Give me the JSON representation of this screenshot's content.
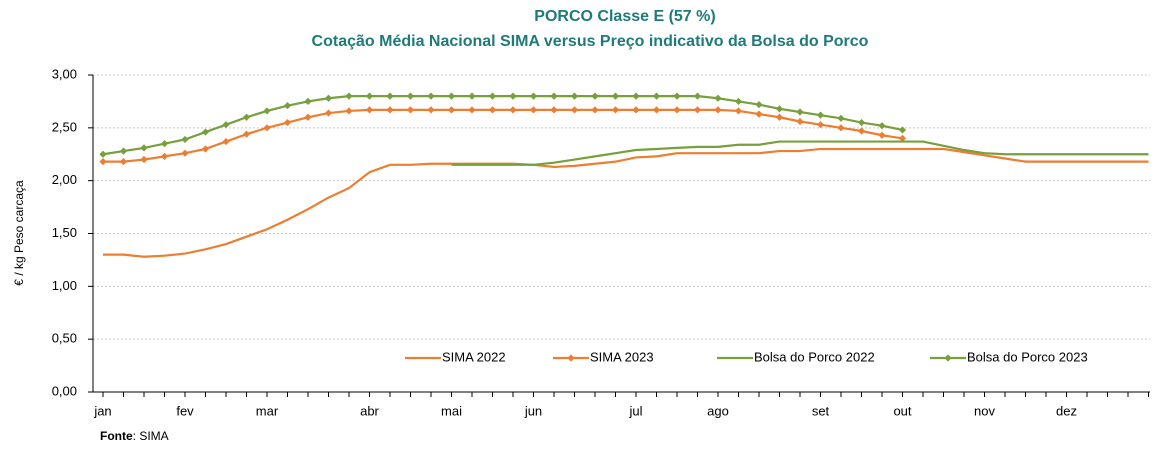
{
  "chart_data": {
    "type": "line",
    "title": "PORCO Classe E (57 %)",
    "subtitle": "Cotação Média Nacional SIMA versus Preço indicativo da Bolsa do Porco",
    "y_label": "€ / kg Peso carcaça",
    "source_label": "Fonte",
    "source_text": ": SIMA",
    "categories": [
      "jan",
      null,
      null,
      null,
      "fev",
      null,
      null,
      null,
      "mar",
      null,
      null,
      null,
      null,
      "abr",
      null,
      null,
      null,
      "mai",
      null,
      null,
      null,
      "jun",
      null,
      null,
      null,
      null,
      "jul",
      null,
      null,
      null,
      "ago",
      null,
      null,
      null,
      null,
      "set",
      null,
      null,
      null,
      "out",
      null,
      null,
      null,
      "nov",
      null,
      null,
      null,
      "dez",
      null,
      null,
      null,
      null
    ],
    "ylim": [
      0,
      3
    ],
    "yticks": [
      {
        "value": 0,
        "label": "0,00"
      },
      {
        "value": 0.5,
        "label": "0,50"
      },
      {
        "value": 1,
        "label": "1,00"
      },
      {
        "value": 1.5,
        "label": "1,50"
      },
      {
        "value": 2,
        "label": "2,00"
      },
      {
        "value": 2.5,
        "label": "2,50"
      },
      {
        "value": 3,
        "label": "3,00"
      }
    ],
    "grid": true,
    "legend": "bottom",
    "series": [
      {
        "name": "SIMA 2022",
        "color": "#ed7d31",
        "markers": false,
        "values": [
          1.3,
          1.3,
          1.28,
          1.29,
          1.31,
          1.35,
          1.4,
          1.47,
          1.54,
          1.63,
          1.73,
          1.84,
          1.93,
          2.08,
          2.15,
          2.15,
          2.16,
          2.16,
          2.16,
          2.16,
          2.16,
          2.15,
          2.13,
          2.14,
          2.16,
          2.18,
          2.22,
          2.23,
          2.26,
          2.26,
          2.26,
          2.26,
          2.26,
          2.28,
          2.28,
          2.3,
          2.3,
          2.3,
          2.3,
          2.3,
          2.3,
          2.3,
          2.27,
          2.24,
          2.21,
          2.18,
          2.18,
          2.18,
          2.18,
          2.18,
          2.18,
          2.18
        ]
      },
      {
        "name": "SIMA 2023",
        "color": "#ed7d31",
        "markers": true,
        "values": [
          2.18,
          2.18,
          2.2,
          2.23,
          2.26,
          2.3,
          2.37,
          2.44,
          2.5,
          2.55,
          2.6,
          2.64,
          2.66,
          2.67,
          2.67,
          2.67,
          2.67,
          2.67,
          2.67,
          2.67,
          2.67,
          2.67,
          2.67,
          2.67,
          2.67,
          2.67,
          2.67,
          2.67,
          2.67,
          2.67,
          2.67,
          2.66,
          2.63,
          2.6,
          2.56,
          2.53,
          2.5,
          2.47,
          2.43,
          2.4,
          null,
          null,
          null,
          null,
          null,
          null,
          null,
          null,
          null,
          null,
          null,
          null
        ]
      },
      {
        "name": "Bolsa do Porco 2022",
        "color": "#77a03c",
        "markers": false,
        "values": [
          null,
          null,
          null,
          null,
          null,
          null,
          null,
          null,
          null,
          null,
          null,
          null,
          null,
          null,
          null,
          null,
          null,
          2.15,
          2.15,
          2.15,
          2.15,
          2.15,
          2.17,
          2.2,
          2.23,
          2.26,
          2.29,
          2.3,
          2.31,
          2.32,
          2.32,
          2.34,
          2.34,
          2.37,
          2.37,
          2.37,
          2.37,
          2.37,
          2.37,
          2.37,
          2.37,
          2.33,
          2.29,
          2.26,
          2.25,
          2.25,
          2.25,
          2.25,
          2.25,
          2.25,
          2.25,
          2.25
        ]
      },
      {
        "name": "Bolsa do Porco 2023",
        "color": "#77a03c",
        "markers": true,
        "values": [
          2.25,
          2.28,
          2.31,
          2.35,
          2.39,
          2.46,
          2.53,
          2.6,
          2.66,
          2.71,
          2.75,
          2.78,
          2.8,
          2.8,
          2.8,
          2.8,
          2.8,
          2.8,
          2.8,
          2.8,
          2.8,
          2.8,
          2.8,
          2.8,
          2.8,
          2.8,
          2.8,
          2.8,
          2.8,
          2.8,
          2.78,
          2.75,
          2.72,
          2.68,
          2.65,
          2.62,
          2.59,
          2.55,
          2.52,
          2.48,
          null,
          null,
          null,
          null,
          null,
          null,
          null,
          null,
          null,
          null,
          null,
          null
        ]
      }
    ]
  }
}
